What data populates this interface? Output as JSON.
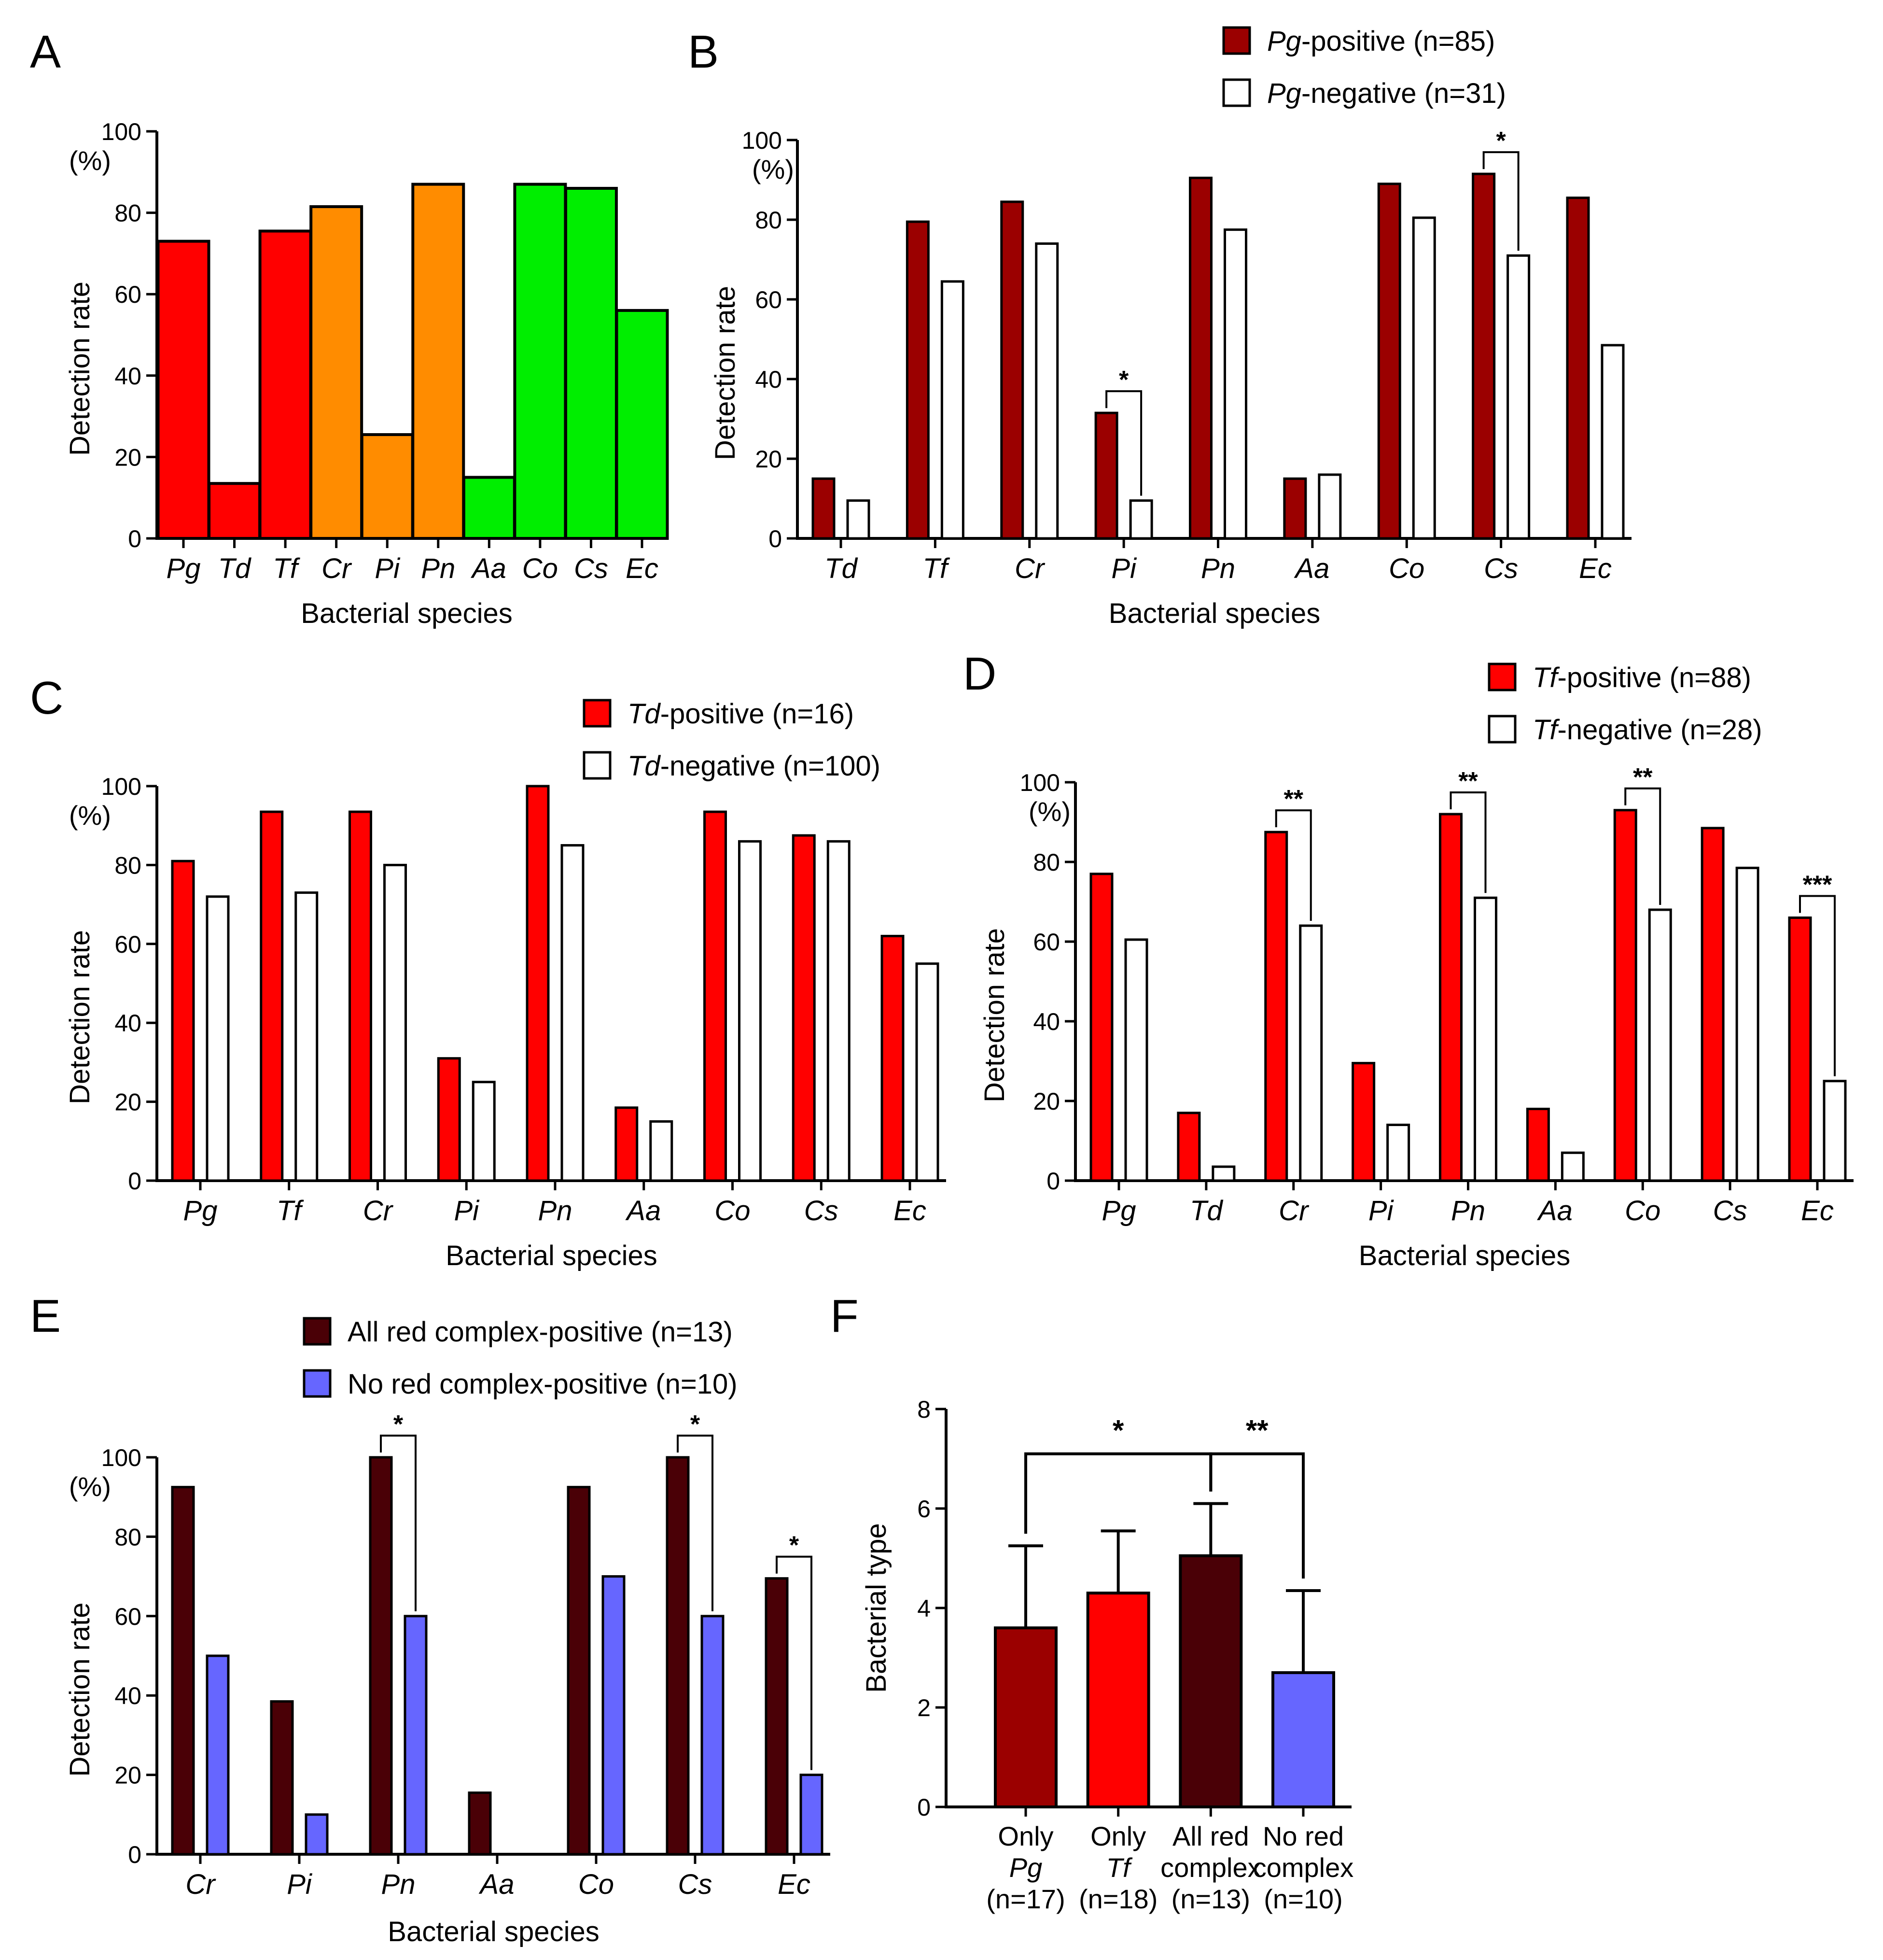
{
  "colors": {
    "pg_positive": "#9b0000",
    "red": "#ff0000",
    "orange": "#ff8c00",
    "green": "#00ee00",
    "dark_red": "#4a0006",
    "blue": "#6666ff",
    "white": "#ffffff",
    "axis": "#000000"
  },
  "chart_data": [
    {
      "panel": "A",
      "type": "bar",
      "xlabel": "Bacterial species",
      "ylabel": "Detection rate",
      "yunit": "(%)",
      "ylim": [
        0,
        100
      ],
      "yticks": [
        "0",
        "20",
        "40",
        "60",
        "80",
        "100"
      ],
      "categories": [
        "Pg",
        "Td",
        "Tf",
        "Cr",
        "Pi",
        "Pn",
        "Aa",
        "Co",
        "Cs",
        "Ec"
      ],
      "values": [
        73,
        13.5,
        75.5,
        81.5,
        25.5,
        87,
        15,
        87,
        86,
        56
      ],
      "bar_colors": [
        "red",
        "red",
        "red",
        "orange",
        "orange",
        "orange",
        "green",
        "green",
        "green",
        "green"
      ],
      "legend": [],
      "significance": []
    },
    {
      "panel": "B",
      "type": "bar",
      "xlabel": "Bacterial species",
      "ylabel": "Detection rate",
      "yunit": "(%)",
      "ylim": [
        0,
        100
      ],
      "yticks": [
        "0",
        "20",
        "40",
        "60",
        "80",
        "100"
      ],
      "categories": [
        "Td",
        "Tf",
        "Cr",
        "Pi",
        "Pn",
        "Aa",
        "Co",
        "Cs",
        "Ec"
      ],
      "series": [
        {
          "name": "Pg-positive (n=85)",
          "color": "pg_positive",
          "values": [
            15,
            79.5,
            84.5,
            31.5,
            90.5,
            15,
            89,
            91.5,
            85.5
          ]
        },
        {
          "name": "Pg-negative (n=31)",
          "color": "white",
          "values": [
            9.5,
            64.5,
            74,
            9.5,
            77.5,
            16,
            80.5,
            71,
            48.5
          ]
        }
      ],
      "legend": [
        {
          "italic": "Pg",
          "rest": "-positive (n=85)",
          "color": "pg_positive"
        },
        {
          "italic": "Pg",
          "rest": "-negative (n=31)",
          "color": "white"
        }
      ],
      "significance": [
        {
          "category": "Pi",
          "label": "*"
        },
        {
          "category": "Cs",
          "label": "*"
        }
      ]
    },
    {
      "panel": "C",
      "type": "bar",
      "xlabel": "Bacterial species",
      "ylabel": "Detection rate",
      "yunit": "(%)",
      "ylim": [
        0,
        100
      ],
      "yticks": [
        "0",
        "20",
        "40",
        "60",
        "80",
        "100"
      ],
      "categories": [
        "Pg",
        "Tf",
        "Cr",
        "Pi",
        "Pn",
        "Aa",
        "Co",
        "Cs",
        "Ec"
      ],
      "series": [
        {
          "name": "Td-positive (n=16)",
          "color": "red",
          "values": [
            81,
            93.5,
            93.5,
            31,
            100,
            18.5,
            93.5,
            87.5,
            62
          ]
        },
        {
          "name": "Td-negative (n=100)",
          "color": "white",
          "values": [
            72,
            73,
            80,
            25,
            85,
            15,
            86,
            86,
            55
          ]
        }
      ],
      "legend": [
        {
          "italic": "Td",
          "rest": "-positive (n=16)",
          "color": "red"
        },
        {
          "italic": "Td",
          "rest": "-negative (n=100)",
          "color": "white"
        }
      ],
      "significance": []
    },
    {
      "panel": "D",
      "type": "bar",
      "xlabel": "Bacterial species",
      "ylabel": "Detection rate",
      "yunit": "(%)",
      "ylim": [
        0,
        100
      ],
      "yticks": [
        "0",
        "20",
        "40",
        "60",
        "80",
        "100"
      ],
      "categories": [
        "Pg",
        "Td",
        "Cr",
        "Pi",
        "Pn",
        "Aa",
        "Co",
        "Cs",
        "Ec"
      ],
      "series": [
        {
          "name": "Tf-positive (n=88)",
          "color": "red",
          "values": [
            77,
            17,
            87.5,
            29.5,
            92,
            18,
            93,
            88.5,
            66
          ]
        },
        {
          "name": "Tf-negative (n=28)",
          "color": "white",
          "values": [
            60.5,
            3.5,
            64,
            14,
            71,
            7,
            68,
            78.5,
            25
          ]
        }
      ],
      "legend": [
        {
          "italic": "Tf",
          "rest": "-positive (n=88)",
          "color": "red"
        },
        {
          "italic": "Tf",
          "rest": "-negative (n=28)",
          "color": "white"
        }
      ],
      "significance": [
        {
          "category": "Cr",
          "label": "**"
        },
        {
          "category": "Pn",
          "label": "**"
        },
        {
          "category": "Co",
          "label": "**"
        },
        {
          "category": "Ec",
          "label": "***"
        }
      ]
    },
    {
      "panel": "E",
      "type": "bar",
      "xlabel": "Bacterial species",
      "ylabel": "Detection rate",
      "yunit": "(%)",
      "ylim": [
        0,
        100
      ],
      "yticks": [
        "0",
        "20",
        "40",
        "60",
        "80",
        "100"
      ],
      "categories": [
        "Cr",
        "Pi",
        "Pn",
        "Aa",
        "Co",
        "Cs",
        "Ec"
      ],
      "series": [
        {
          "name": "All red complex-positive (n=13)",
          "color": "dark_red",
          "values": [
            92.5,
            38.5,
            100,
            15.5,
            92.5,
            100,
            69.5
          ]
        },
        {
          "name": "No red complex-positive (n=10)",
          "color": "blue",
          "values": [
            50,
            10,
            60,
            0,
            70,
            60,
            20
          ]
        }
      ],
      "legend": [
        {
          "italic": "",
          "rest": "All red complex-positive (n=13)",
          "color": "dark_red"
        },
        {
          "italic": "",
          "rest": "No red complex-positive (n=10)",
          "color": "blue"
        }
      ],
      "significance": [
        {
          "category": "Pn",
          "label": "*"
        },
        {
          "category": "Cs",
          "label": "*"
        },
        {
          "category": "Ec",
          "label": "*"
        }
      ]
    },
    {
      "panel": "F",
      "type": "bar",
      "xlabel": "",
      "ylabel": "Bacterial type",
      "ylim": [
        0,
        8
      ],
      "yticks": [
        "0",
        "2",
        "4",
        "6",
        "8"
      ],
      "categories": [
        {
          "line1": "Only",
          "line2": "Pg",
          "line2_italic": true,
          "line3": "(n=17)"
        },
        {
          "line1": "Only",
          "line2": "Tf",
          "line2_italic": true,
          "line3": "(n=18)"
        },
        {
          "line1": "All red",
          "line2": "complex",
          "line2_italic": false,
          "line3": "(n=13)"
        },
        {
          "line1": "No red",
          "line2": "complex",
          "line2_italic": false,
          "line3": "(n=10)"
        }
      ],
      "values": [
        3.6,
        4.3,
        5.05,
        2.7
      ],
      "errors": [
        1.65,
        1.25,
        1.05,
        1.65
      ],
      "bar_colors": [
        "pg_positive",
        "red",
        "dark_red",
        "blue"
      ],
      "significance": [
        {
          "from": 0,
          "to": 2,
          "label": "*"
        },
        {
          "from": 2,
          "to": 3,
          "label": "**"
        }
      ]
    }
  ]
}
